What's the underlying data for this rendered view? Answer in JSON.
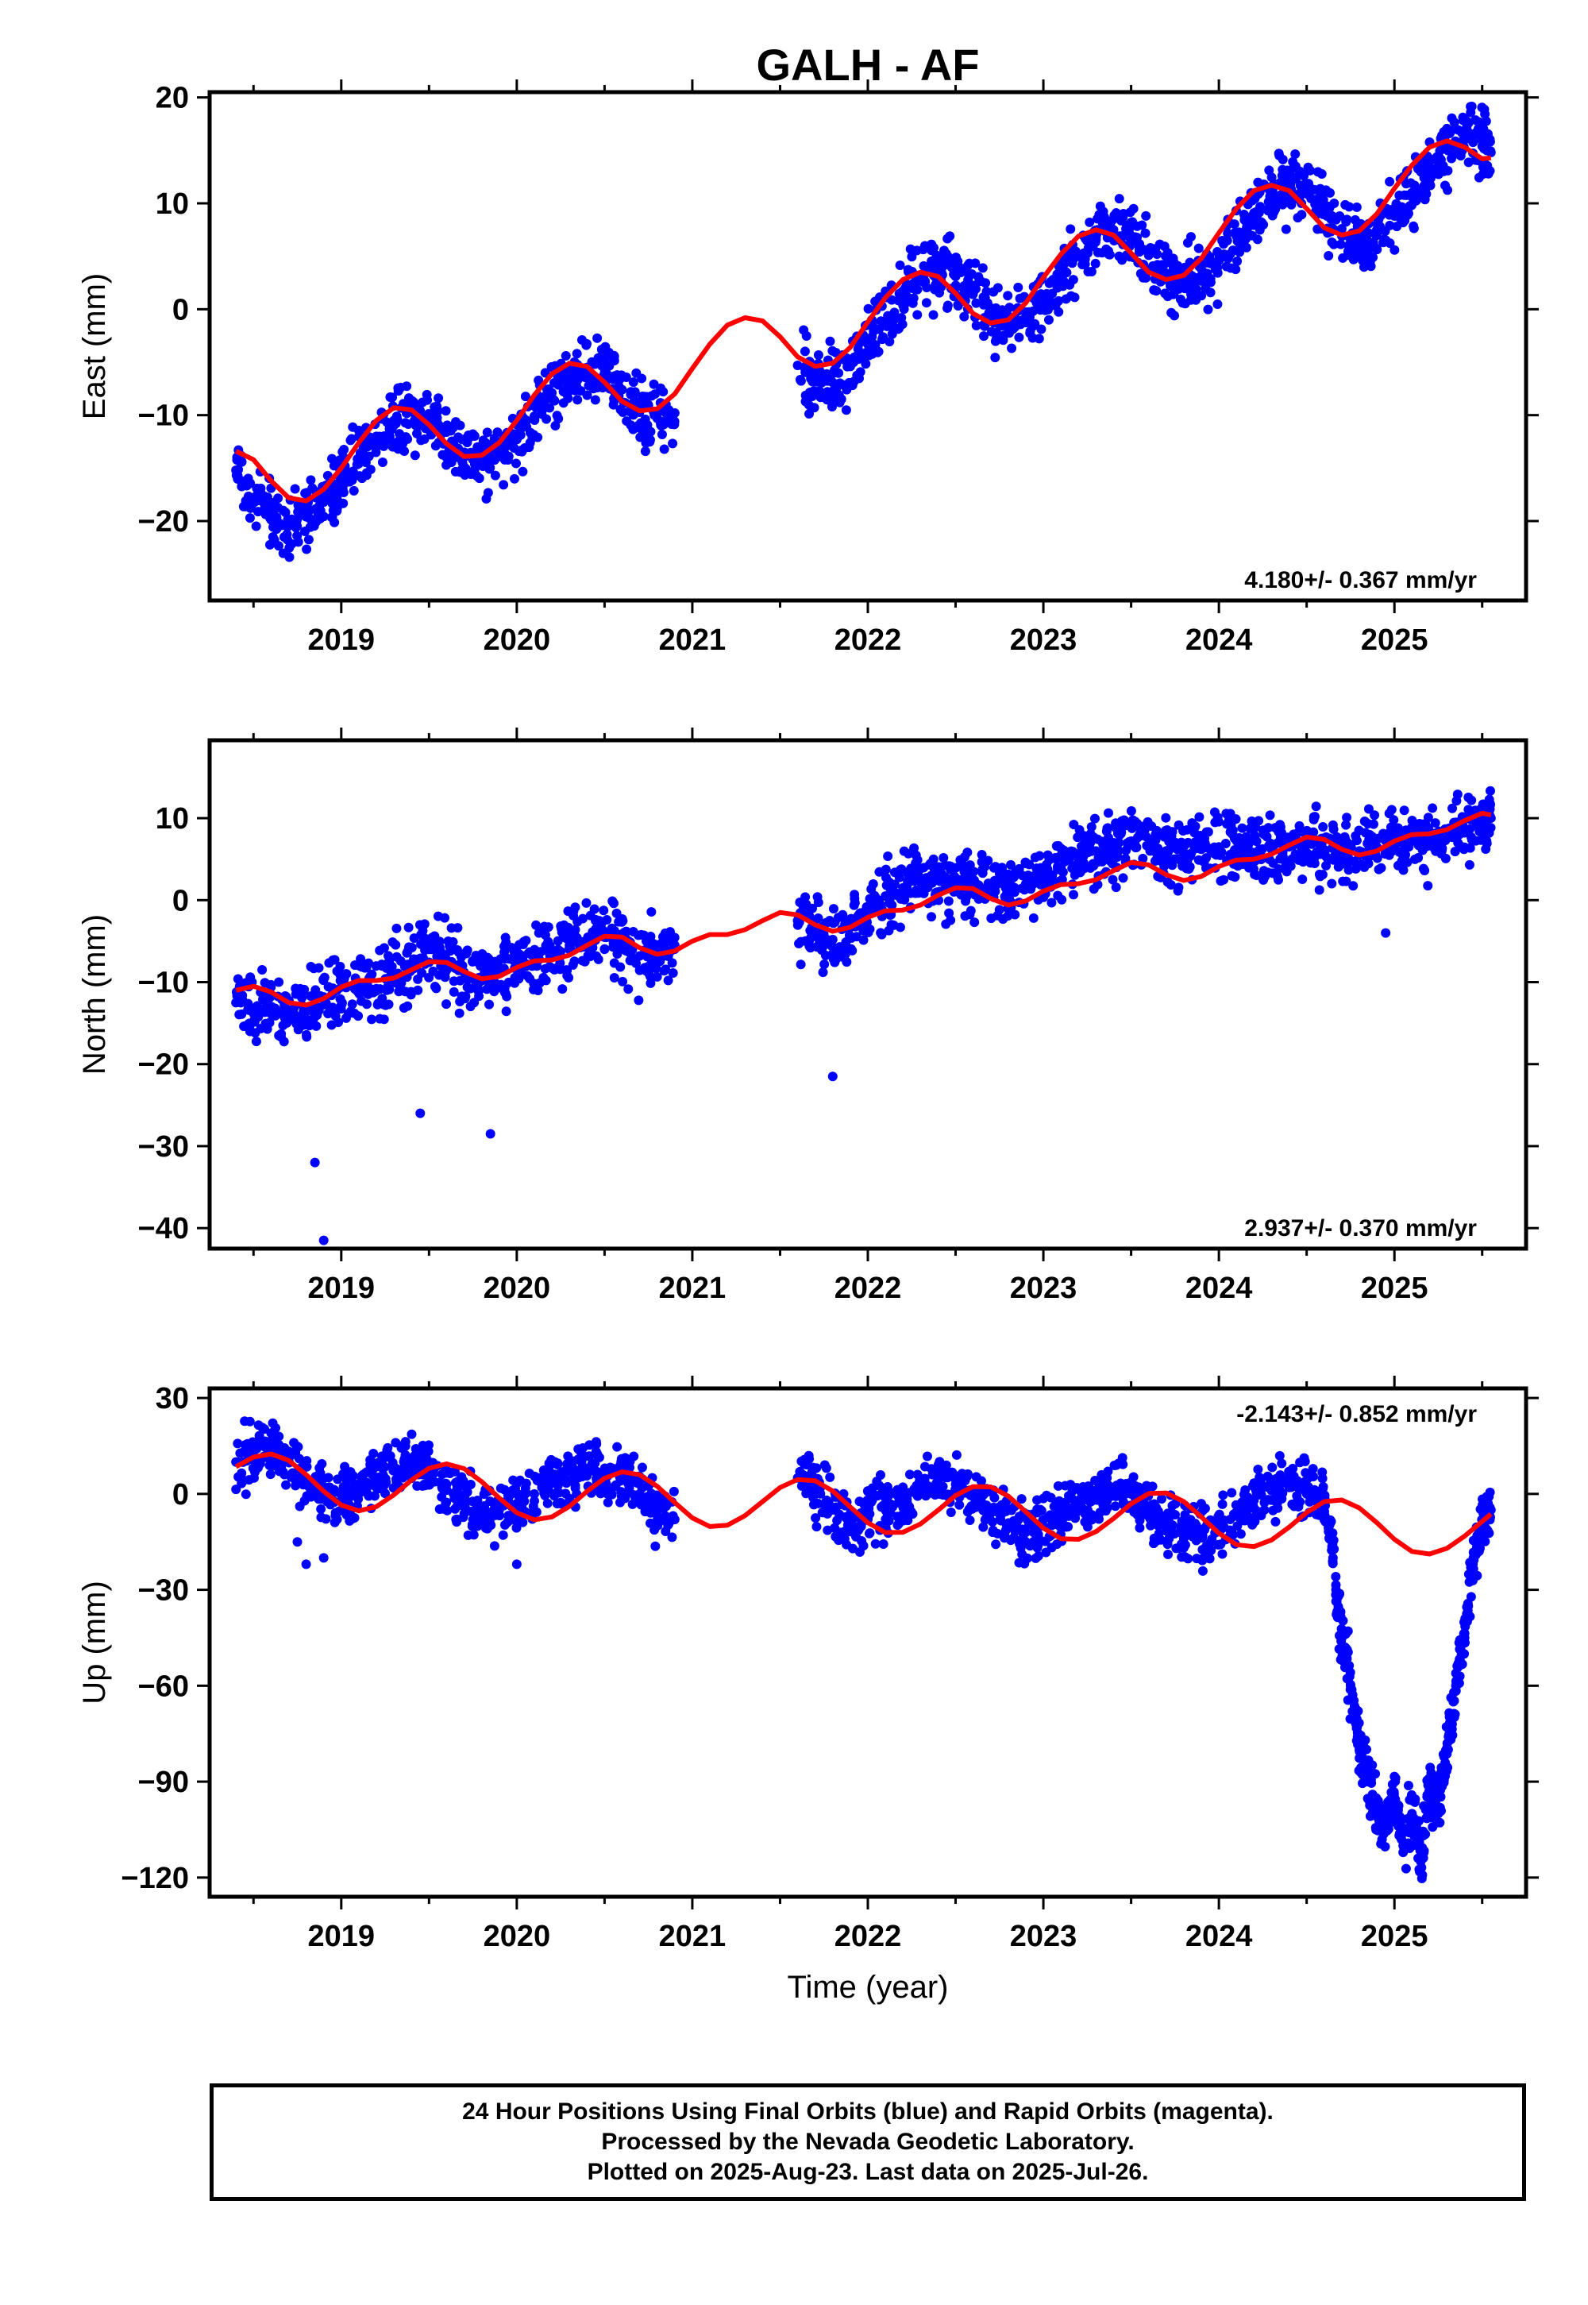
{
  "title": "GALH - AF",
  "xlabel": "Time (year)",
  "footer": {
    "line1": "24 Hour Positions Using Final Orbits (blue) and Rapid Orbits (magenta).",
    "line2": "Processed by the Nevada Geodetic Laboratory.",
    "line3": "Plotted on 2025-Aug-23. Last data on 2025-Jul-26."
  },
  "colors": {
    "data": "#0000ff",
    "model": "#ff0000",
    "frame": "#000000"
  },
  "chart_data": [
    {
      "type": "scatter",
      "ylabel": "East (mm)",
      "rate_label": "4.180+/- 0.367 mm/yr",
      "xlim": [
        2018.25,
        2025.75
      ],
      "ylim": [
        -27.5,
        20.5
      ],
      "x_ticks": [
        2019,
        2020,
        2021,
        2022,
        2023,
        2024,
        2025
      ],
      "y_ticks": [
        -20,
        -10,
        0,
        10,
        20
      ],
      "series": [
        {
          "role": "daily positions",
          "x": [
            2018.4,
            2018.5,
            2018.6,
            2018.7,
            2018.8,
            2018.9,
            2019.0,
            2019.1,
            2019.2,
            2019.3,
            2019.4,
            2019.5,
            2019.6,
            2019.7,
            2019.8,
            2019.9,
            2020.0,
            2020.1,
            2020.2,
            2020.3,
            2020.4,
            2020.5,
            2020.6,
            2020.7,
            2020.8,
            2020.9,
            2021.6,
            2021.7,
            2021.8,
            2021.9,
            2022.0,
            2022.1,
            2022.2,
            2022.3,
            2022.4,
            2022.5,
            2022.6,
            2022.7,
            2022.8,
            2022.9,
            2023.0,
            2023.1,
            2023.2,
            2023.3,
            2023.4,
            2023.5,
            2023.6,
            2023.7,
            2023.8,
            2023.9,
            2024.0,
            2024.1,
            2024.2,
            2024.3,
            2024.4,
            2024.5,
            2024.6,
            2024.7,
            2024.8,
            2024.9,
            2025.0,
            2025.1,
            2025.2,
            2025.3,
            2025.4,
            2025.5,
            2025.55
          ],
          "y": [
            -15.2,
            -17.8,
            -19.6,
            -20.3,
            -19.6,
            -18.1,
            -16.3,
            -14.1,
            -12.0,
            -10.5,
            -9.6,
            -10.1,
            -11.6,
            -13.5,
            -14.4,
            -13.9,
            -12.3,
            -10.1,
            -7.9,
            -6.2,
            -5.5,
            -6.0,
            -7.6,
            -9.6,
            -10.3,
            -9.8,
            -5.3,
            -6.8,
            -6.9,
            -5.4,
            -3.3,
            -1.2,
            0.9,
            2.7,
            3.6,
            3.1,
            1.5,
            -0.5,
            -1.3,
            -1.0,
            0.9,
            3.0,
            5.1,
            6.8,
            7.5,
            6.9,
            5.1,
            3.4,
            2.8,
            3.1,
            4.6,
            6.9,
            9.1,
            11.0,
            11.8,
            11.2,
            9.4,
            7.6,
            6.7,
            7.1,
            8.8,
            11.0,
            13.3,
            15.1,
            16.0,
            15.4,
            14.8
          ]
        },
        {
          "role": "model fit",
          "x": [
            2018.4,
            2018.5,
            2018.6,
            2018.7,
            2018.8,
            2018.9,
            2019.0,
            2019.1,
            2019.2,
            2019.3,
            2019.4,
            2019.5,
            2019.6,
            2019.7,
            2019.8,
            2019.9,
            2020.0,
            2020.1,
            2020.2,
            2020.3,
            2020.4,
            2020.5,
            2020.6,
            2020.7,
            2020.8,
            2020.9,
            2021.0,
            2021.1,
            2021.2,
            2021.3,
            2021.4,
            2021.5,
            2021.6,
            2021.7,
            2021.8,
            2021.9,
            2022.0,
            2022.1,
            2022.2,
            2022.3,
            2022.4,
            2022.5,
            2022.6,
            2022.7,
            2022.8,
            2022.9,
            2023.0,
            2023.1,
            2023.2,
            2023.3,
            2023.4,
            2023.5,
            2023.6,
            2023.7,
            2023.8,
            2023.9,
            2024.0,
            2024.1,
            2024.2,
            2024.3,
            2024.4,
            2024.5,
            2024.6,
            2024.7,
            2024.8,
            2024.9,
            2025.0,
            2025.1,
            2025.2,
            2025.3,
            2025.4,
            2025.5,
            2025.55
          ],
          "y": [
            -13.4,
            -14.2,
            -16.2,
            -17.8,
            -18.1,
            -17.0,
            -15.0,
            -12.6,
            -10.5,
            -9.3,
            -9.5,
            -10.9,
            -12.7,
            -13.9,
            -13.8,
            -12.6,
            -10.5,
            -8.1,
            -6.1,
            -5.1,
            -5.4,
            -6.9,
            -8.7,
            -9.6,
            -9.4,
            -8.0,
            -5.6,
            -3.3,
            -1.5,
            -0.8,
            -1.1,
            -2.6,
            -4.5,
            -5.4,
            -5.1,
            -3.6,
            -1.2,
            1.1,
            2.8,
            3.5,
            3.1,
            1.5,
            -0.4,
            -1.3,
            -1.0,
            0.6,
            3.0,
            5.2,
            6.9,
            7.5,
            7.0,
            5.3,
            3.5,
            2.8,
            3.2,
            4.8,
            7.2,
            9.5,
            11.2,
            11.7,
            11.2,
            9.5,
            7.7,
            7.0,
            7.4,
            9.0,
            11.4,
            13.6,
            15.3,
            15.9,
            15.3,
            14.2,
            14.3
          ]
        }
      ]
    },
    {
      "type": "scatter",
      "ylabel": "North (mm)",
      "rate_label": "2.937+/- 0.370 mm/yr",
      "xlim": [
        2018.25,
        2025.75
      ],
      "ylim": [
        -42.5,
        19.5
      ],
      "x_ticks": [
        2019,
        2020,
        2021,
        2022,
        2023,
        2024,
        2025
      ],
      "y_ticks": [
        -40,
        -30,
        -20,
        -10,
        0,
        10
      ],
      "series": [
        {
          "role": "daily positions",
          "x": [
            2018.4,
            2018.5,
            2018.6,
            2018.7,
            2018.8,
            2018.9,
            2019.0,
            2019.1,
            2019.2,
            2019.3,
            2019.4,
            2019.5,
            2019.6,
            2019.7,
            2019.8,
            2019.9,
            2020.0,
            2020.1,
            2020.2,
            2020.3,
            2020.4,
            2020.5,
            2020.6,
            2020.7,
            2020.8,
            2020.9,
            2021.6,
            2021.7,
            2021.8,
            2021.9,
            2022.0,
            2022.1,
            2022.2,
            2022.3,
            2022.4,
            2022.5,
            2022.6,
            2022.7,
            2022.8,
            2022.9,
            2023.0,
            2023.1,
            2023.2,
            2023.3,
            2023.4,
            2023.5,
            2023.6,
            2023.7,
            2023.8,
            2023.9,
            2024.0,
            2024.1,
            2024.2,
            2024.3,
            2024.4,
            2024.5,
            2024.6,
            2024.7,
            2024.8,
            2024.9,
            2025.0,
            2025.1,
            2025.2,
            2025.3,
            2025.4,
            2025.5,
            2025.55,
            2018.85,
            2018.9,
            2019.45,
            2019.85,
            2021.8,
            2024.95
          ],
          "y": [
            -12.5,
            -13.8,
            -13.2,
            -14.0,
            -13.5,
            -11.8,
            -10.6,
            -10.2,
            -10.8,
            -9.2,
            -7.8,
            -6.0,
            -7.5,
            -8.8,
            -9.8,
            -8.2,
            -7.5,
            -7.0,
            -6.5,
            -5.5,
            -4.8,
            -4.0,
            -5.0,
            -6.8,
            -6.2,
            -5.5,
            -2.5,
            -3.8,
            -4.8,
            -3.2,
            -1.0,
            0.5,
            1.5,
            2.5,
            2.8,
            2.5,
            2.0,
            1.5,
            1.2,
            2.0,
            3.0,
            4.0,
            5.0,
            6.0,
            7.0,
            7.2,
            6.5,
            5.5,
            5.8,
            6.2,
            6.5,
            6.0,
            5.8,
            6.2,
            6.5,
            6.8,
            6.0,
            5.5,
            6.0,
            6.5,
            7.0,
            7.2,
            7.5,
            8.0,
            8.5,
            9.5,
            10.0,
            -32.0,
            -41.5,
            -26.0,
            -28.5,
            -21.5,
            -4.0
          ]
        },
        {
          "role": "model fit",
          "x": [
            2018.4,
            2018.5,
            2018.6,
            2018.7,
            2018.8,
            2018.9,
            2019.0,
            2019.1,
            2019.2,
            2019.3,
            2019.4,
            2019.5,
            2019.6,
            2019.7,
            2019.8,
            2019.9,
            2020.0,
            2020.1,
            2020.2,
            2020.3,
            2020.4,
            2020.5,
            2020.6,
            2020.7,
            2020.8,
            2020.9,
            2021.0,
            2021.1,
            2021.2,
            2021.3,
            2021.4,
            2021.5,
            2021.6,
            2021.7,
            2021.8,
            2021.9,
            2022.0,
            2022.1,
            2022.2,
            2022.3,
            2022.4,
            2022.5,
            2022.6,
            2022.7,
            2022.8,
            2022.9,
            2023.0,
            2023.1,
            2023.2,
            2023.3,
            2023.4,
            2023.5,
            2023.6,
            2023.7,
            2023.8,
            2023.9,
            2024.0,
            2024.1,
            2024.2,
            2024.3,
            2024.4,
            2024.5,
            2024.6,
            2024.7,
            2024.8,
            2024.9,
            2025.0,
            2025.1,
            2025.2,
            2025.3,
            2025.4,
            2025.5,
            2025.55
          ],
          "y": [
            -11.0,
            -10.5,
            -11.2,
            -12.5,
            -12.8,
            -12.0,
            -10.6,
            -9.8,
            -9.8,
            -9.5,
            -8.5,
            -7.5,
            -7.6,
            -8.7,
            -9.6,
            -9.3,
            -8.2,
            -7.4,
            -7.3,
            -6.7,
            -5.5,
            -4.4,
            -4.5,
            -5.8,
            -6.6,
            -6.2,
            -5.0,
            -4.2,
            -4.2,
            -3.6,
            -2.5,
            -1.5,
            -1.8,
            -3.0,
            -3.8,
            -3.3,
            -2.1,
            -1.3,
            -1.2,
            -0.6,
            0.6,
            1.5,
            1.4,
            0.2,
            -0.6,
            -0.1,
            1.1,
            1.9,
            2.0,
            2.5,
            3.6,
            4.6,
            4.3,
            3.1,
            2.4,
            2.9,
            4.1,
            4.9,
            5.0,
            5.6,
            6.7,
            7.7,
            7.4,
            6.2,
            5.5,
            6.0,
            7.2,
            8.0,
            8.1,
            8.6,
            9.7,
            10.6,
            10.4
          ]
        }
      ]
    },
    {
      "type": "scatter",
      "ylabel": "Up (mm)",
      "rate_label": "-2.143+/- 0.852 mm/yr",
      "xlim": [
        2018.25,
        2025.75
      ],
      "ylim": [
        -126,
        33
      ],
      "x_ticks": [
        2019,
        2020,
        2021,
        2022,
        2023,
        2024,
        2025
      ],
      "y_ticks": [
        -120,
        -90,
        -60,
        -30,
        0,
        30
      ],
      "series": [
        {
          "role": "daily positions",
          "x": [
            2018.4,
            2018.5,
            2018.6,
            2018.7,
            2018.8,
            2018.9,
            2019.0,
            2019.1,
            2019.2,
            2019.3,
            2019.4,
            2019.5,
            2019.6,
            2019.7,
            2019.8,
            2019.9,
            2020.0,
            2020.1,
            2020.2,
            2020.3,
            2020.4,
            2020.5,
            2020.6,
            2020.7,
            2020.8,
            2020.9,
            2021.6,
            2021.7,
            2021.8,
            2021.9,
            2022.0,
            2022.1,
            2022.2,
            2022.3,
            2022.4,
            2022.5,
            2022.6,
            2022.7,
            2022.8,
            2022.9,
            2023.0,
            2023.1,
            2023.2,
            2023.3,
            2023.4,
            2023.5,
            2023.6,
            2023.7,
            2023.8,
            2023.9,
            2024.0,
            2024.1,
            2024.2,
            2024.3,
            2024.4,
            2024.5,
            2024.6,
            2024.65,
            2024.7,
            2024.75,
            2024.8,
            2024.85,
            2024.9,
            2024.95,
            2025.0,
            2025.05,
            2025.1,
            2025.15,
            2025.2,
            2025.25,
            2025.3,
            2025.35,
            2025.4,
            2025.45,
            2025.5,
            2025.55,
            2018.75,
            2018.8,
            2018.9,
            2020.0
          ],
          "y": [
            10,
            12,
            15,
            10,
            5,
            0,
            -2,
            0,
            5,
            8,
            10,
            8,
            3,
            -3,
            -6,
            -5,
            -3,
            0,
            4,
            7,
            8,
            7,
            5,
            0,
            -5,
            -8,
            5,
            3,
            -5,
            -10,
            -8,
            -5,
            -2,
            2,
            4,
            3,
            0,
            -5,
            -10,
            -12,
            -10,
            -5,
            -2,
            0,
            2,
            0,
            -5,
            -10,
            -14,
            -13,
            -10,
            -6,
            -2,
            1,
            2,
            0,
            -2,
            -20,
            -45,
            -60,
            -80,
            -90,
            -100,
            -105,
            -95,
            -110,
            -100,
            -115,
            -90,
            -100,
            -80,
            -60,
            -45,
            -20,
            -10,
            -5,
            -15,
            -22,
            -20,
            -22
          ]
        },
        {
          "role": "model fit",
          "x": [
            2018.4,
            2018.5,
            2018.6,
            2018.7,
            2018.8,
            2018.9,
            2019.0,
            2019.1,
            2019.2,
            2019.3,
            2019.4,
            2019.5,
            2019.6,
            2019.7,
            2019.8,
            2019.9,
            2020.0,
            2020.1,
            2020.2,
            2020.3,
            2020.4,
            2020.5,
            2020.6,
            2020.7,
            2020.8,
            2020.9,
            2021.0,
            2021.1,
            2021.2,
            2021.3,
            2021.4,
            2021.5,
            2021.6,
            2021.7,
            2021.8,
            2021.9,
            2022.0,
            2022.1,
            2022.2,
            2022.3,
            2022.4,
            2022.5,
            2022.6,
            2022.7,
            2022.8,
            2022.9,
            2023.0,
            2023.1,
            2023.2,
            2023.3,
            2023.4,
            2023.5,
            2023.6,
            2023.7,
            2023.8,
            2023.9,
            2024.0,
            2024.1,
            2024.2,
            2024.3,
            2024.4,
            2024.5,
            2024.6,
            2024.7,
            2024.8,
            2024.9,
            2025.0,
            2025.1,
            2025.2,
            2025.3,
            2025.4,
            2025.5,
            2025.55
          ],
          "y": [
            8.5,
            11.5,
            12.5,
            10.5,
            6.0,
            0.8,
            -3.5,
            -5.3,
            -4.0,
            -0.3,
            4.3,
            8.0,
            9.4,
            7.9,
            3.8,
            -1.3,
            -5.9,
            -8.1,
            -7.2,
            -3.9,
            0.8,
            4.9,
            6.9,
            6.0,
            2.4,
            -2.7,
            -7.5,
            -10.2,
            -9.8,
            -6.8,
            -2.4,
            2.0,
            4.5,
            4.1,
            0.9,
            -4.1,
            -9.0,
            -12.1,
            -12.0,
            -9.4,
            -5.1,
            -0.5,
            2.3,
            2.2,
            -0.7,
            -5.6,
            -10.7,
            -14.0,
            -14.2,
            -11.8,
            -7.7,
            -3.1,
            0.1,
            0.3,
            -2.4,
            -7.2,
            -12.3,
            -15.9,
            -16.5,
            -14.4,
            -10.4,
            -5.8,
            -2.4,
            -1.9,
            -4.4,
            -9.0,
            -14.2,
            -18.0,
            -18.8,
            -17.0,
            -13.2,
            -8.6,
            -6.3
          ]
        }
      ]
    }
  ]
}
